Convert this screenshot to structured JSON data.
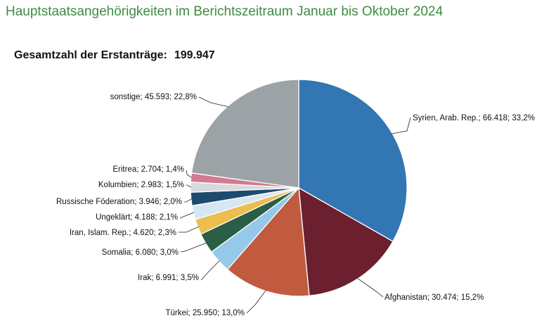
{
  "title": "Hauptstaatsangehörigkeiten im Berichtszeitraum Januar bis Oktober 2024",
  "total": {
    "label": "Gesamtzahl der Erstanträge:",
    "value": "199.947"
  },
  "chart_data": {
    "type": "pie",
    "title": "Hauptstaatsangehörigkeiten im Berichtszeitraum Januar bis Oktober 2024",
    "start_angle": "12 o'clock",
    "direction": "clockwise",
    "slices": [
      {
        "name": "Syrien, Arab. Rep.",
        "value": 66418,
        "percent": 33.2,
        "label": "Syrien, Arab. Rep.; 66.418; 33,2%",
        "color": "#3276b4"
      },
      {
        "name": "Afghanistan",
        "value": 30474,
        "percent": 15.2,
        "label": "Afghanistan; 30.474; 15,2%",
        "color": "#6c1f2f"
      },
      {
        "name": "Türkei",
        "value": 25950,
        "percent": 13.0,
        "label": "Türkei; 25.950; 13,0%",
        "color": "#c05b40"
      },
      {
        "name": "Irak",
        "value": 6991,
        "percent": 3.5,
        "label": "Irak; 6.991; 3,5%",
        "color": "#94c9ea"
      },
      {
        "name": "Somalia",
        "value": 6080,
        "percent": 3.0,
        "label": "Somalia; 6.080; 3,0%",
        "color": "#2a5e46"
      },
      {
        "name": "Iran, Islam. Rep.",
        "value": 4620,
        "percent": 2.3,
        "label": "Iran, Islam. Rep.; 4.620; 2,3%",
        "color": "#ecbd4f"
      },
      {
        "name": "Ungeklärt",
        "value": 4188,
        "percent": 2.1,
        "label": "Ungeklärt; 4.188; 2,1%",
        "color": "#d6e7f3"
      },
      {
        "name": "Russische Föderation",
        "value": 3946,
        "percent": 2.0,
        "label": "Russische Föderation; 3.946; 2,0%",
        "color": "#1e4a6e"
      },
      {
        "name": "Kolumbien",
        "value": 2983,
        "percent": 1.5,
        "label": "Kolumbien; 2.983; 1,5%",
        "color": "#d6dadc"
      },
      {
        "name": "Eritrea",
        "value": 2704,
        "percent": 1.4,
        "label": "Eritrea; 2.704; 1,4%",
        "color": "#d57a92"
      },
      {
        "name": "sonstige",
        "value": 45593,
        "percent": 22.8,
        "label": "sonstige; 45.593; 22,8%",
        "color": "#9ca3a6"
      }
    ]
  }
}
